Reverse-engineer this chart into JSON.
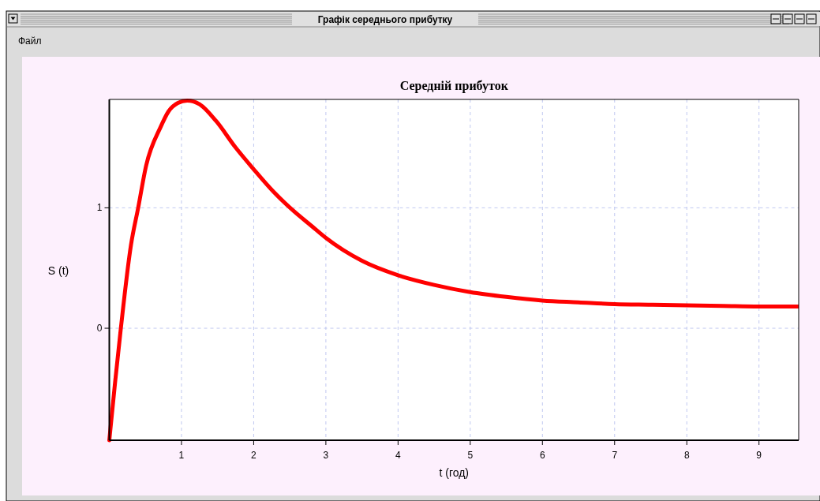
{
  "chart_data": {
    "type": "line",
    "title": "Середній прибуток",
    "xlabel": "t (год)",
    "ylabel": "S (t)",
    "annotations": [
      "Графік середнього прибутку",
      "Файл"
    ],
    "xlim": [
      0,
      9.55
    ],
    "ylim": [
      -0.93,
      1.9
    ],
    "xticks": [
      1,
      2,
      3,
      4,
      5,
      6,
      7,
      8,
      9
    ],
    "yticks": [
      0,
      1
    ],
    "grid": true,
    "marker": "none",
    "line_style": "solid",
    "series": [
      {
        "color": "#ff0000",
        "x": [
          0,
          0.08,
          0.16,
          0.3,
          0.4,
          0.51,
          0.71,
          0.82,
          0.95,
          1.08,
          1.25,
          1.48,
          1.75,
          2.0,
          2.28,
          2.56,
          2.8,
          3.0,
          3.5,
          4.0,
          4.5,
          5.0,
          5.5,
          6.0,
          6.5,
          7.0,
          7.5,
          8.0,
          8.5,
          9.0,
          9.55
        ],
        "values": [
          -0.93,
          -0.45,
          0,
          0.69,
          1.0,
          1.35,
          1.67,
          1.8,
          1.87,
          1.89,
          1.86,
          1.72,
          1.5,
          1.32,
          1.13,
          0.97,
          0.85,
          0.75,
          0.56,
          0.44,
          0.36,
          0.3,
          0.26,
          0.23,
          0.215,
          0.2,
          0.195,
          0.19,
          0.185,
          0.18,
          0.18
        ]
      }
    ]
  }
}
